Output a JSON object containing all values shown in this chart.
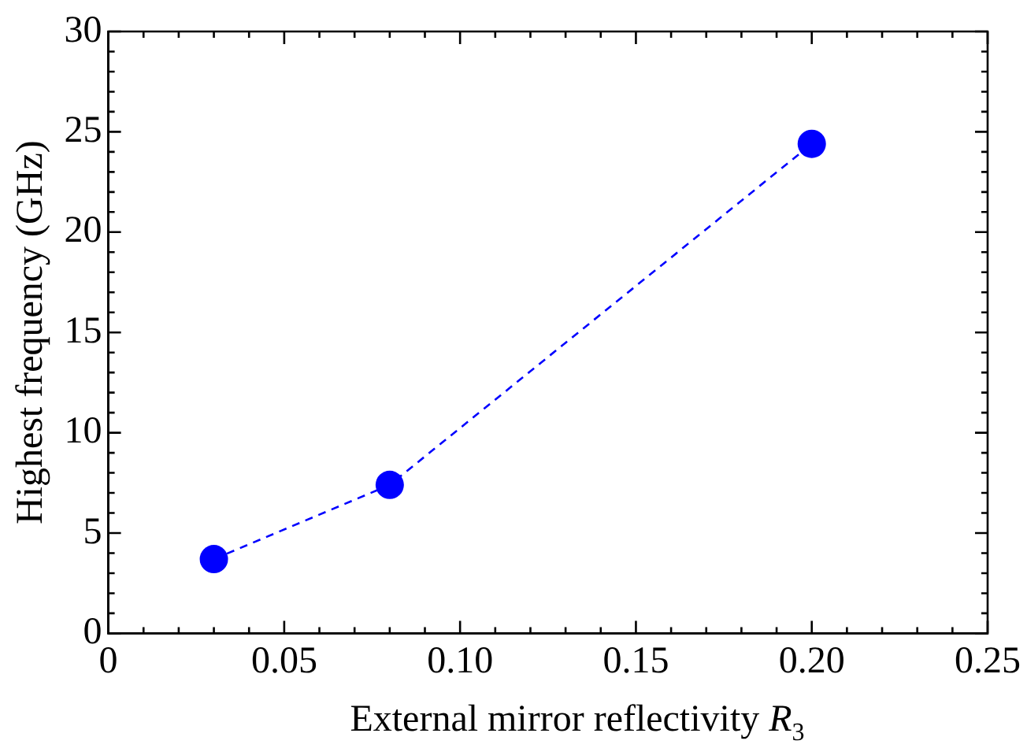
{
  "chart_data": {
    "type": "line",
    "xlabel": "External mirror reflectivity R$_{3}$",
    "ylabel": "Highest frequency (GHz)",
    "x": [
      0.03,
      0.08,
      0.2
    ],
    "series": [
      {
        "color": "#0000ff",
        "values": [
          3.7,
          7.4,
          24.4
        ]
      }
    ],
    "xlim": [
      0,
      0.25
    ],
    "xticks": [
      {
        "value": 0,
        "label": "0"
      },
      0.05,
      {
        "value": 0.1,
        "label": "0.10"
      },
      0.15,
      {
        "value": 0.2,
        "label": "0.20"
      },
      0.25
    ],
    "ylim": [
      0,
      30
    ],
    "yticks": [
      0,
      5,
      10,
      15,
      20,
      25,
      30
    ],
    "grid": false,
    "legend": false,
    "marker": "circle",
    "line_style": "dashed"
  }
}
